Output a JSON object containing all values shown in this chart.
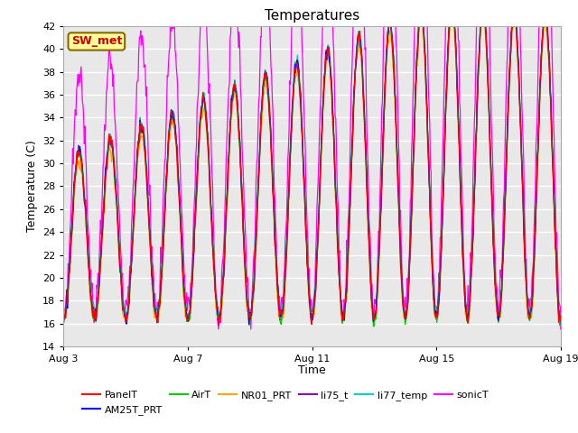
{
  "title": "Temperatures",
  "xlabel": "Time",
  "ylabel": "Temperature (C)",
  "ylim": [
    14,
    42
  ],
  "yticks": [
    14,
    16,
    18,
    20,
    22,
    24,
    26,
    28,
    30,
    32,
    34,
    36,
    38,
    40,
    42
  ],
  "xtick_labels": [
    "Aug 3",
    "Aug 7",
    "Aug 11",
    "Aug 15",
    "Aug 19"
  ],
  "xtick_pos": [
    0,
    4,
    8,
    12,
    16
  ],
  "series_colors": {
    "PanelT": "#ff0000",
    "AM25T_PRT": "#0000ff",
    "AirT": "#00cc00",
    "NR01_PRT": "#ffa500",
    "li75_t": "#8800aa",
    "li77_temp": "#00cccc",
    "sonicT": "#ff00ff"
  },
  "annotation_text": "SW_met",
  "annotation_color": "#cc0000",
  "annotation_bg": "#ffff99",
  "plot_bg": "#e8e8e8",
  "n_days": 17,
  "pts_per_day": 48
}
